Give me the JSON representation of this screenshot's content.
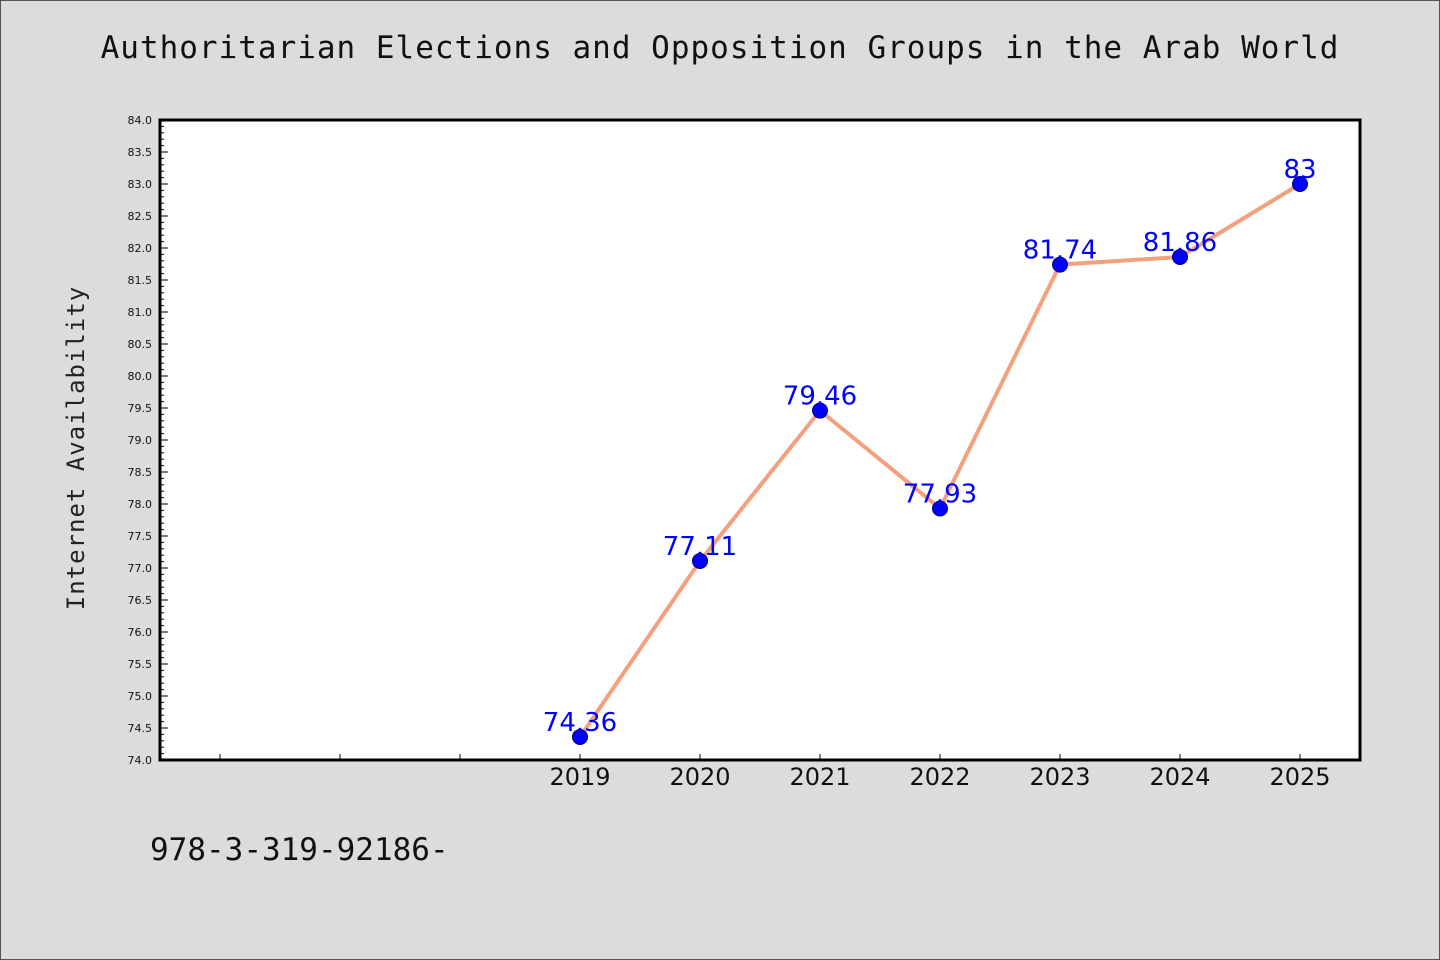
{
  "chart_data": {
    "type": "line",
    "title": "Authoritarian Elections and Opposition Groups in the Arab World",
    "xlabel": "",
    "ylabel": "Internet Availability",
    "categories": [
      "2019",
      "2020",
      "2021",
      "2022",
      "2023",
      "2024",
      "2025"
    ],
    "series": [
      {
        "values": [
          74.36,
          77.11,
          79.46,
          77.93,
          81.74,
          81.86,
          83
        ],
        "data_labels": [
          "74.36",
          "77.11",
          "79.46",
          "77.93",
          "81.74",
          "81.86",
          "83"
        ],
        "line_color": "#f4a07e",
        "marker_color": "#0000ff"
      }
    ],
    "ylim": [
      74.0,
      84.0
    ],
    "yticks": [
      "74.0",
      "74.5",
      "75.0",
      "75.5",
      "76.0",
      "76.5",
      "77.0",
      "77.5",
      "78.0",
      "78.5",
      "79.0",
      "79.5",
      "80.0",
      "80.5",
      "81.0",
      "81.5",
      "82.0",
      "82.5",
      "83.0",
      "83.5",
      "84.0"
    ],
    "grid": false,
    "legend": "none"
  },
  "footnote": "978-3-319-92186-",
  "colors": {
    "background": "#dcdcdc",
    "plot_area": "#ffffff",
    "line": "#f4a07e",
    "marker": "#0000ff",
    "data_label": "#0000ff"
  }
}
